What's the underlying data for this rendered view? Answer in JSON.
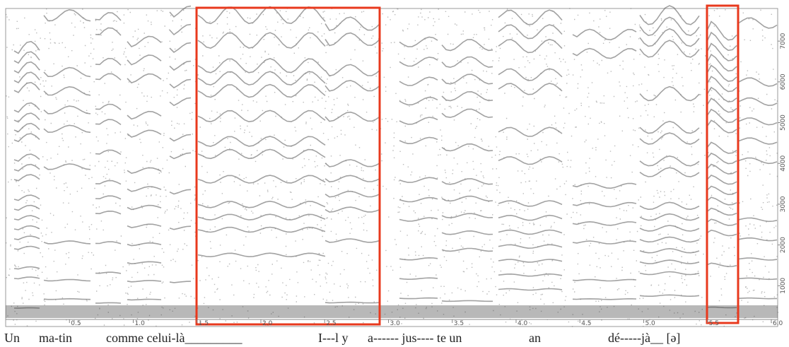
{
  "chart_data": {
    "type": "spectrogram",
    "xlim": [
      0,
      6.05
    ],
    "xticks": [
      0.5,
      {
        "value": 1,
        "label": "1.0"
      },
      1.5,
      {
        "value": 2,
        "label": "2.0"
      },
      2.5,
      {
        "value": 3,
        "label": "3.0"
      },
      3.5,
      {
        "value": 4,
        "label": "4.0"
      },
      4.5,
      {
        "value": 5,
        "label": "5.0"
      },
      5.5,
      {
        "value": 6,
        "label": "6.0"
      }
    ],
    "ylim": [
      0,
      7800
    ],
    "yticks": [
      1000,
      2000,
      3000,
      4000,
      5000,
      6000,
      7000
    ],
    "lyrics": [
      "Un",
      "ma-tin",
      "comme celui-là_________",
      "I---l y",
      "a------ jus---- te un",
      "an",
      "dé-----jà__ [ə]"
    ]
  }
}
